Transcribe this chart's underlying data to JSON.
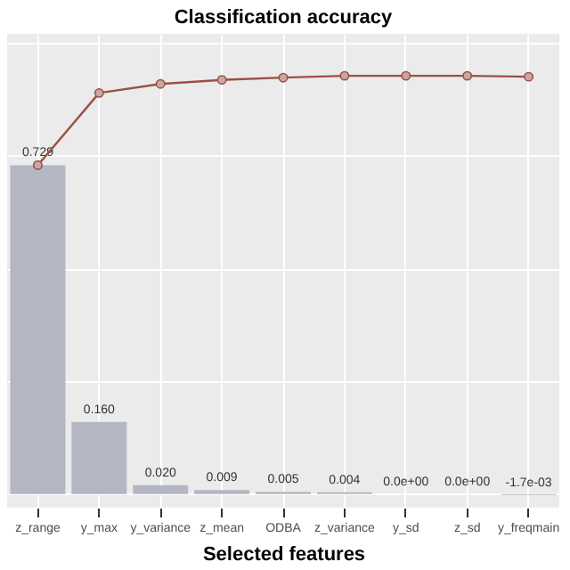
{
  "chart_data": {
    "type": "bar",
    "title": "Classification accuracy",
    "xlabel": "Selected features",
    "categories": [
      "z_range",
      "y_max",
      "y_variance",
      "z_mean",
      "ODBA",
      "z_variance",
      "y_sd",
      "z_sd",
      "y_freqmain"
    ],
    "series": [
      {
        "color": "#b4b7c3",
        "values": [
          0.729,
          0.16,
          0.02,
          0.009,
          0.005,
          0.004,
          0.0,
          0.0,
          -0.0017
        ],
        "value_labels": [
          "0.729",
          "0.160",
          "0.020",
          "0.009",
          "0.005",
          "0.004",
          "0.0e+00",
          "0.0e+00",
          "-1.7e-03"
        ]
      },
      {
        "type": "line",
        "color": "#9c4f46",
        "values": [
          0.729,
          0.889,
          0.909,
          0.918,
          0.923,
          0.927,
          0.927,
          0.927,
          0.925
        ]
      }
    ],
    "marker": "circle",
    "grid": true,
    "tick_labels": "x",
    "ylim": [
      -0.03,
      1.02
    ],
    "yticks": [
      {
        "value": 0,
        "label": null
      },
      {
        "value": 0.25,
        "label": null
      },
      {
        "value": 0.5,
        "label": null
      },
      {
        "value": 0.75,
        "label": null
      },
      {
        "value": 1,
        "label": null
      }
    ]
  }
}
